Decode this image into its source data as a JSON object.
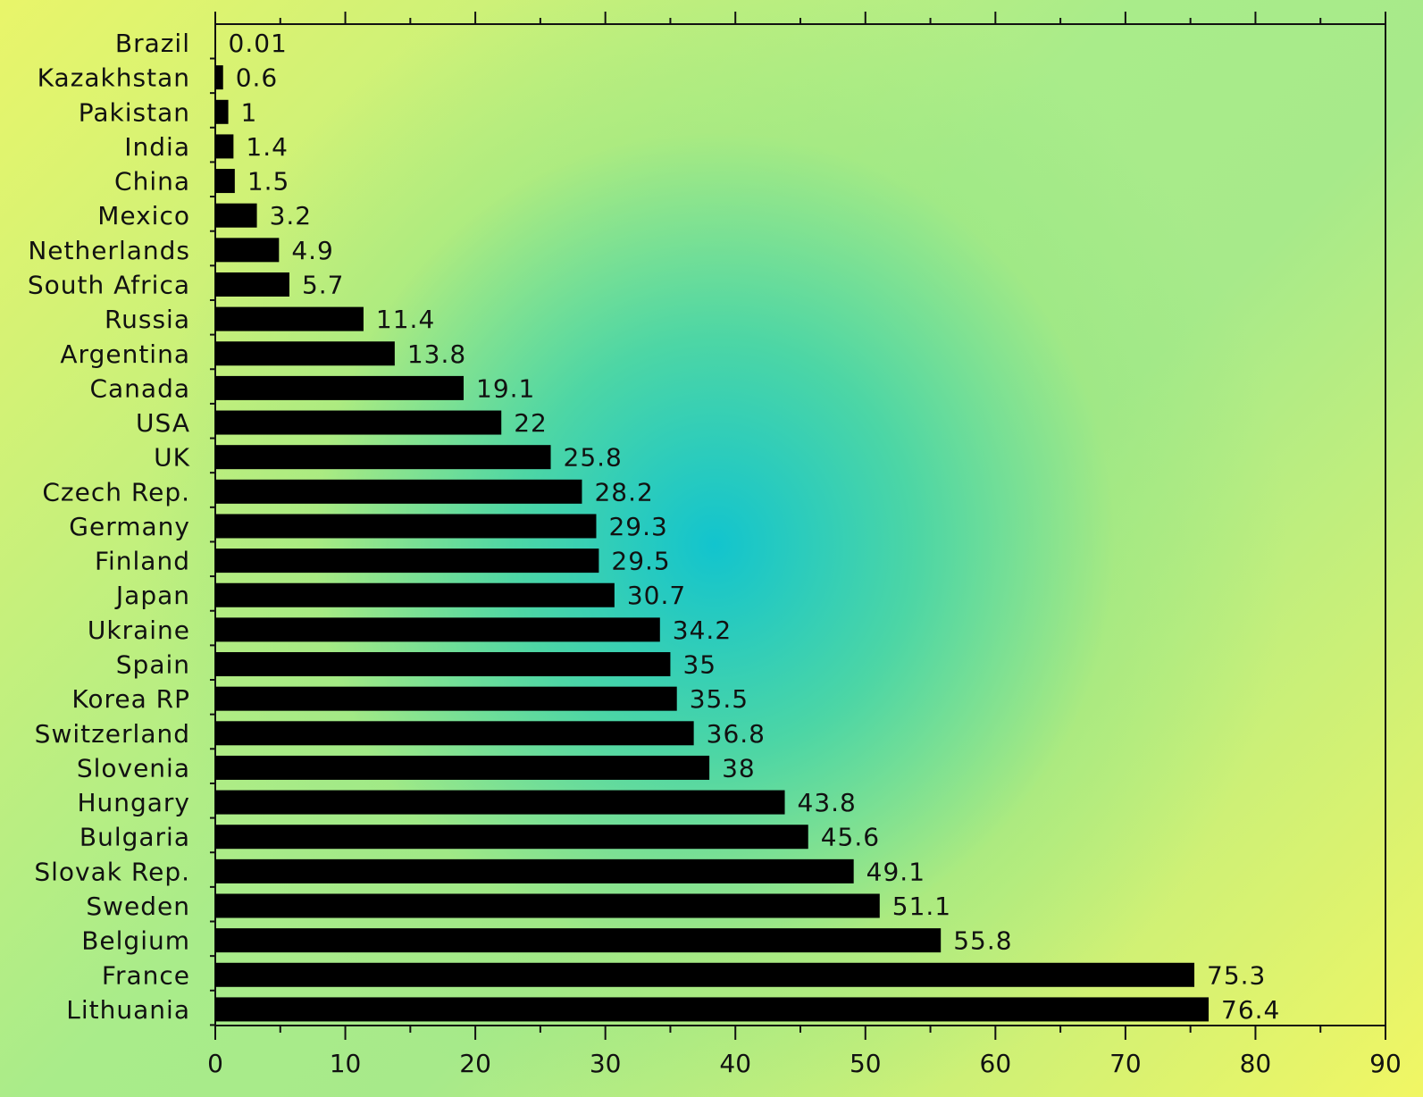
{
  "chart_data": {
    "type": "bar",
    "orientation": "horizontal",
    "title": "",
    "xlabel": "",
    "ylabel": "",
    "categories": [
      "Brazil",
      "Kazakhstan",
      "Pakistan",
      "India",
      "China",
      "Mexico",
      "Netherlands",
      "South Africa",
      "Russia",
      "Argentina",
      "Canada",
      "USA",
      "UK",
      "Czech Rep.",
      "Germany",
      "Finland",
      "Japan",
      "Ukraine",
      "Spain",
      "Korea RP",
      "Switzerland",
      "Slovenia",
      "Hungary",
      "Bulgaria",
      "Slovak Rep.",
      "Sweden",
      "Belgium",
      "France",
      "Lithuania"
    ],
    "values": [
      0.01,
      0.6,
      1,
      1.4,
      1.5,
      3.2,
      4.9,
      5.7,
      11.4,
      13.8,
      19.1,
      22,
      25.8,
      28.2,
      29.3,
      29.5,
      30.7,
      34.2,
      35,
      35.5,
      36.8,
      38,
      43.8,
      45.6,
      49.1,
      51.1,
      55.8,
      75.3,
      76.4
    ],
    "value_labels": [
      "0.01",
      "0.6",
      "1",
      "1.4",
      "1.5",
      "3.2",
      "4.9",
      "5.7",
      "11.4",
      "13.8",
      "19.1",
      "22",
      "25.8",
      "28.2",
      "29.3",
      "29.5",
      "30.7",
      "34.2",
      "35",
      "35.5",
      "36.8",
      "38",
      "43.8",
      "45.6",
      "49.1",
      "51.1",
      "55.8",
      "75.3",
      "76.4"
    ],
    "xlim": [
      0,
      90
    ],
    "xticks": [
      0,
      10,
      20,
      30,
      40,
      50,
      60,
      70,
      80,
      90
    ],
    "xtick_labels": [
      "0",
      "10",
      "20",
      "30",
      "40",
      "50",
      "60",
      "70",
      "80",
      "90"
    ],
    "grid": false,
    "legend": "none",
    "colors": {
      "bar": "#000000",
      "text": "#111111",
      "axis": "#111111"
    }
  }
}
